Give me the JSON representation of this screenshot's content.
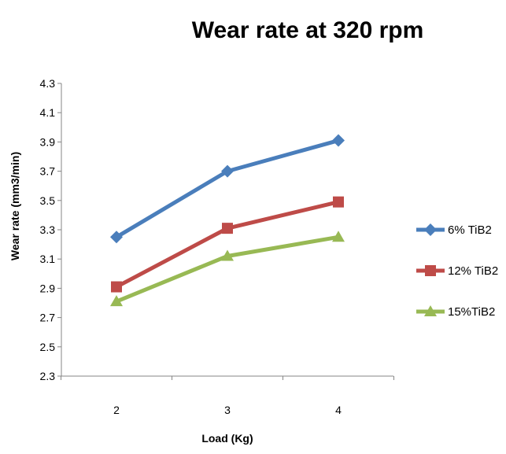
{
  "chart_data": {
    "type": "line",
    "title": "Wear rate at 320 rpm",
    "xlabel": "Load (Kg)",
    "ylabel": "Wear rate (mm3/min)",
    "categories": [
      "2",
      "3",
      "4"
    ],
    "ylim": [
      2.3,
      4.3
    ],
    "yticks": [
      "4.3",
      "4.1",
      "3.9",
      "3.7",
      "3.5",
      "3.3",
      "3.1",
      "2.9",
      "2.7",
      "2.5",
      "2.3"
    ],
    "grid": false,
    "legend_position": "right",
    "series": [
      {
        "name": "6% TiB2",
        "values": [
          3.25,
          3.7,
          3.91
        ],
        "color": "#4a7ebb",
        "marker": "diamond"
      },
      {
        "name": "12% TiB2",
        "values": [
          2.91,
          3.31,
          3.49
        ],
        "color": "#be4b48",
        "marker": "square"
      },
      {
        "name": "15%TiB2",
        "values": [
          2.81,
          3.12,
          3.25
        ],
        "color": "#98b954",
        "marker": "triangle"
      }
    ]
  }
}
